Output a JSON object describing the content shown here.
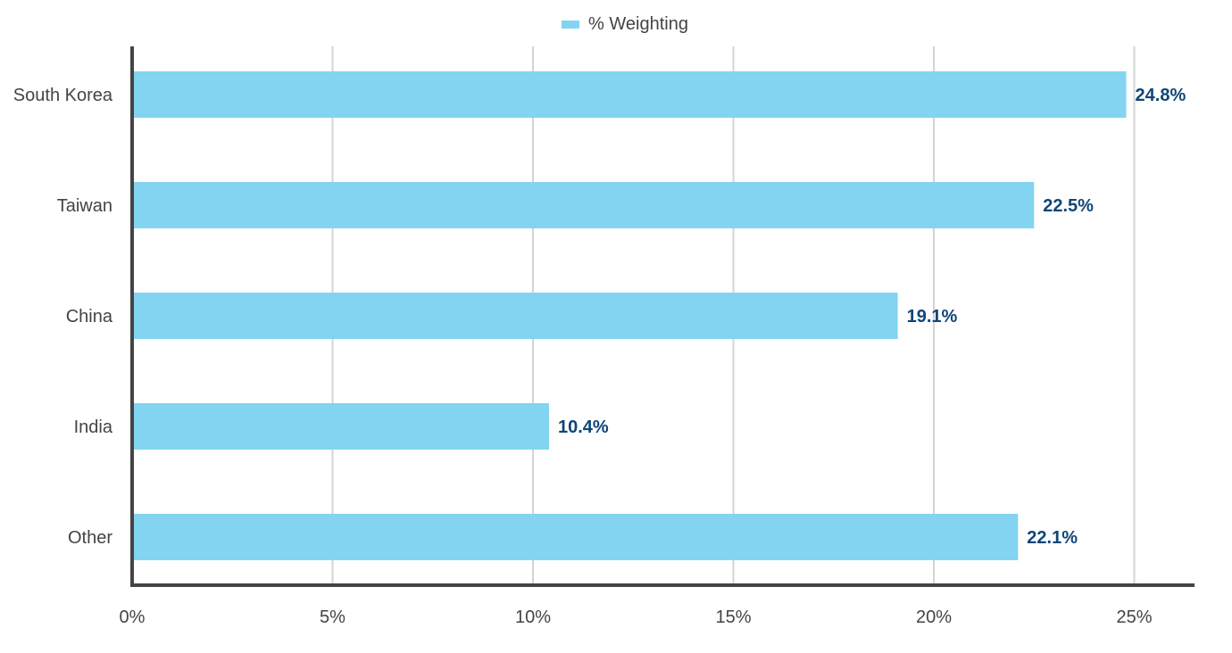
{
  "legend": {
    "label": "% Weighting"
  },
  "colors": {
    "bar": "#83d4f0",
    "value_label": "#0f4577",
    "axis": "#444444",
    "grid": "#d4d4d4",
    "tick_label": "#444444"
  },
  "chart_data": {
    "type": "bar",
    "orientation": "horizontal",
    "categories": [
      "South Korea",
      "Taiwan",
      "China",
      "India",
      "Other"
    ],
    "series": [
      {
        "name": "% Weighting",
        "values": [
          24.8,
          22.5,
          19.1,
          10.4,
          22.1
        ]
      }
    ],
    "value_labels": [
      "24.8%",
      "22.5%",
      "19.1%",
      "10.4%",
      "22.1%"
    ],
    "x_ticks": [
      0,
      5,
      10,
      15,
      20,
      25
    ],
    "x_tick_labels": [
      "0%",
      "5%",
      "10%",
      "15%",
      "20%",
      "25%"
    ],
    "xlim": [
      0,
      26.5
    ],
    "title": "",
    "xlabel": "",
    "ylabel": "",
    "grid": "vertical",
    "legend_position": "top-center"
  }
}
